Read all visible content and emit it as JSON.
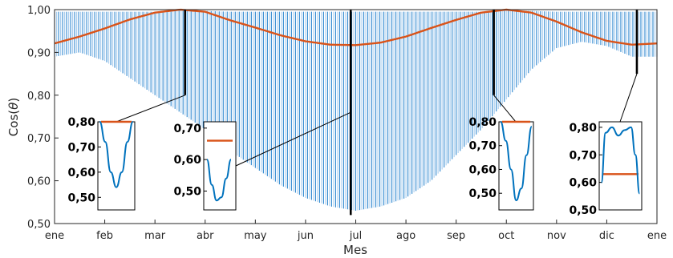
{
  "chart_data": {
    "type": "line",
    "xlabel": "Mes",
    "ylabel": "Cos(θ)",
    "ylabel_base": "Cos(",
    "ylabel_theta": "θ",
    "ylabel_close": ")",
    "xlim": [
      0,
      12
    ],
    "ylim": [
      0.5,
      1.0
    ],
    "x_ticks": [
      "ene",
      "feb",
      "mar",
      "abr",
      "may",
      "jun",
      "jul",
      "ago",
      "sep",
      "oct",
      "nov",
      "dic",
      "ene"
    ],
    "y_ticks": [
      "0,50",
      "0,60",
      "0,70",
      "0,80",
      "0,90",
      "1,00"
    ],
    "colors": {
      "band": "#2c86cf",
      "band_light": "#a9cdee",
      "curve": "#d95319",
      "marker": "#000000",
      "inset_curve": "#0072bd"
    },
    "series": [
      {
        "kind": "curve",
        "x": [
          0,
          0.5,
          1,
          1.5,
          2,
          2.5,
          3,
          3.5,
          4,
          4.5,
          5,
          5.5,
          6,
          6.5,
          7,
          7.5,
          8,
          8.5,
          9,
          9.5,
          10,
          10.5,
          11,
          11.5,
          12
        ],
        "y": [
          0.921,
          0.937,
          0.956,
          0.977,
          0.993,
          1.0,
          0.995,
          0.975,
          0.958,
          0.94,
          0.926,
          0.918,
          0.917,
          0.923,
          0.937,
          0.957,
          0.976,
          0.993,
          1.0,
          0.993,
          0.972,
          0.947,
          0.927,
          0.918,
          0.921
        ]
      },
      {
        "kind": "band",
        "x": [
          0,
          0.5,
          1,
          1.5,
          2,
          2.5,
          3,
          3.5,
          4,
          4.5,
          5,
          5.5,
          6,
          6.5,
          7,
          7.5,
          8,
          8.5,
          9,
          9.5,
          10,
          10.5,
          11,
          11.5,
          12
        ],
        "upper": [
          0.995,
          0.995,
          0.995,
          0.995,
          0.995,
          0.997,
          0.997,
          0.995,
          0.995,
          0.995,
          0.995,
          0.995,
          0.995,
          0.995,
          0.995,
          0.995,
          0.995,
          0.995,
          0.997,
          0.997,
          0.995,
          0.995,
          0.995,
          0.995,
          0.995
        ],
        "lower": [
          0.89,
          0.9,
          0.88,
          0.84,
          0.8,
          0.76,
          0.72,
          0.67,
          0.63,
          0.59,
          0.56,
          0.54,
          0.53,
          0.54,
          0.56,
          0.6,
          0.66,
          0.72,
          0.79,
          0.86,
          0.91,
          0.925,
          0.915,
          0.89,
          0.89
        ]
      }
    ],
    "markers": [
      {
        "label": "marker-mar",
        "x": 2.6,
        "y_low": 0.8,
        "y_high": 1.0
      },
      {
        "label": "marker-jun",
        "x": 5.9,
        "y_low": 0.52,
        "y_high": 1.0
      },
      {
        "label": "marker-sep",
        "x": 8.75,
        "y_low": 0.8,
        "y_high": 1.0
      },
      {
        "label": "marker-dic",
        "x": 11.6,
        "y_low": 0.85,
        "y_high": 1.0
      }
    ],
    "insets": [
      {
        "ticks": [
          "0,50",
          "0,60",
          "0,70",
          "0,80"
        ],
        "ylim": [
          0.45,
          0.8
        ],
        "blue_x": [
          0.05,
          0.2,
          0.35,
          0.5,
          0.65,
          0.8,
          0.95
        ],
        "blue_y": [
          0.8,
          0.72,
          0.6,
          0.54,
          0.6,
          0.72,
          0.8
        ],
        "orange_y": 0.8
      },
      {
        "ticks": [
          "0,50",
          "0,60",
          "0,70"
        ],
        "ylim": [
          0.44,
          0.72
        ],
        "blue_x": [
          0.1,
          0.25,
          0.4,
          0.55,
          0.7,
          0.85
        ],
        "blue_y": [
          0.6,
          0.52,
          0.47,
          0.48,
          0.54,
          0.6
        ],
        "orange_y": 0.66
      },
      {
        "ticks": [
          "0,50",
          "0,60",
          "0,70",
          "0,80"
        ],
        "ylim": [
          0.43,
          0.8
        ],
        "blue_x": [
          0.05,
          0.2,
          0.35,
          0.5,
          0.65,
          0.8,
          0.95
        ],
        "blue_y": [
          0.8,
          0.72,
          0.6,
          0.47,
          0.52,
          0.66,
          0.78
        ],
        "orange_y": 0.8
      },
      {
        "ticks": [
          "0,50",
          "0,60",
          "0,70",
          "0,80"
        ],
        "ylim": [
          0.5,
          0.82
        ],
        "blue_x": [
          0.05,
          0.15,
          0.3,
          0.45,
          0.6,
          0.75,
          0.85,
          0.95
        ],
        "blue_y": [
          0.6,
          0.78,
          0.8,
          0.77,
          0.79,
          0.8,
          0.7,
          0.56
        ],
        "orange_y": 0.63
      }
    ]
  }
}
